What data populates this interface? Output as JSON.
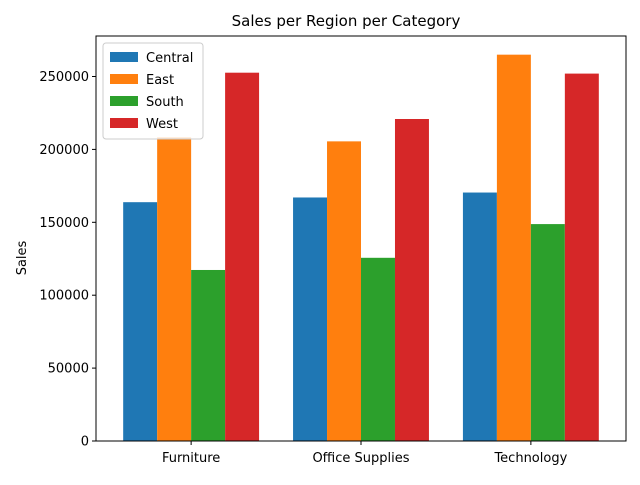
{
  "chart_data": {
    "type": "bar",
    "title": "Sales per Region per Category",
    "xlabel": "",
    "ylabel": "Sales",
    "categories": [
      "Furniture",
      "Office Supplies",
      "Technology"
    ],
    "series": [
      {
        "name": "Central",
        "color": "#1f77b4",
        "values": [
          163797,
          167026,
          170416
        ]
      },
      {
        "name": "East",
        "color": "#ff7f0e",
        "values": [
          208291,
          205516,
          264974
        ]
      },
      {
        "name": "South",
        "color": "#2ca02c",
        "values": [
          117299,
          125651,
          148772
        ]
      },
      {
        "name": "West",
        "color": "#d62728",
        "values": [
          252613,
          220853,
          251992
        ]
      }
    ],
    "ylim": [
      0,
      277781
    ],
    "yticks": [
      0,
      50000,
      100000,
      150000,
      200000,
      250000
    ],
    "ytick_labels": [
      "0",
      "50000",
      "100000",
      "150000",
      "200000",
      "250000"
    ],
    "grid": false,
    "legend_position": "top-left"
  }
}
